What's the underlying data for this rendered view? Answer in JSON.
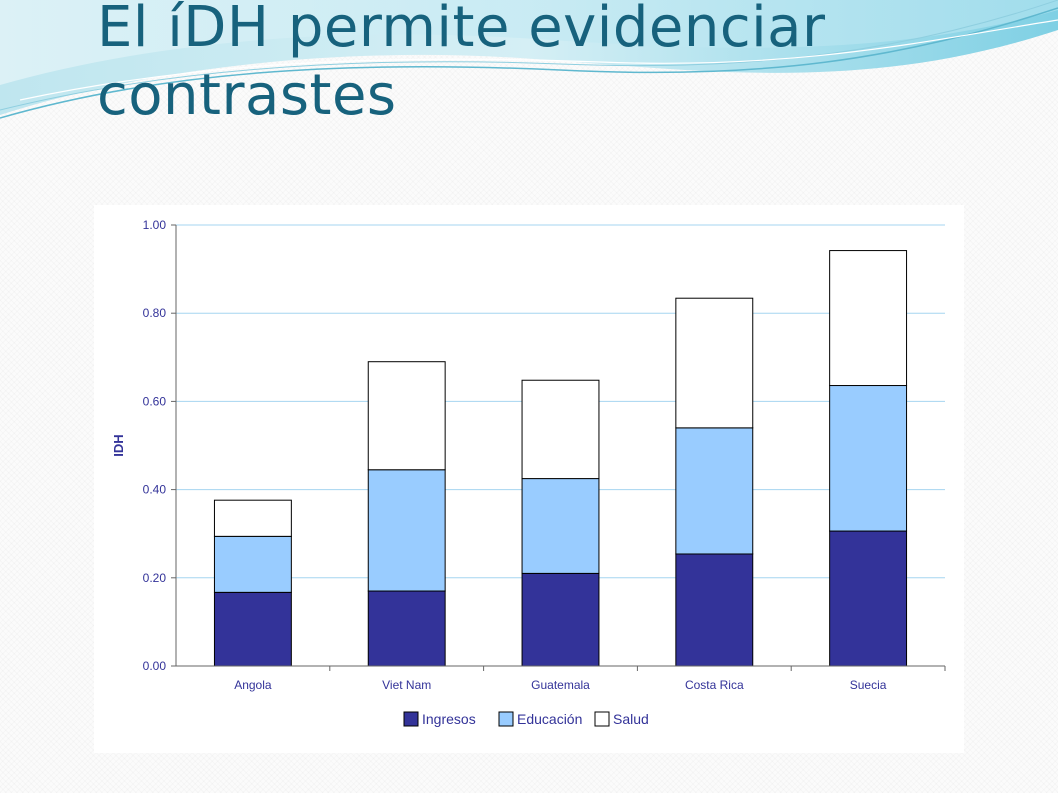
{
  "slide": {
    "title": "El íDH permite evidenciar contrastes"
  },
  "colors": {
    "title": "#17627d",
    "ingresos": "#333399",
    "educacion": "#99ccff",
    "salud": "#ffffff",
    "gridline": "#a6d5f0",
    "axis_text": "#333399"
  },
  "chart_data": {
    "type": "bar",
    "stacked": true,
    "categories": [
      "Angola",
      "Viet Nam",
      "Guatemala",
      "Costa Rica",
      "Suecia"
    ],
    "series": [
      {
        "name": "Ingresos",
        "color": "#333399",
        "values": [
          0.167,
          0.17,
          0.21,
          0.254,
          0.306
        ]
      },
      {
        "name": "Educación",
        "color": "#99ccff",
        "values": [
          0.127,
          0.275,
          0.215,
          0.286,
          0.33
        ]
      },
      {
        "name": "Salud",
        "color": "#ffffff",
        "values": [
          0.082,
          0.245,
          0.223,
          0.294,
          0.306
        ]
      }
    ],
    "ylabel": "IDH",
    "xlabel": "",
    "ylim": [
      0,
      1
    ],
    "yticks": [
      "0.00",
      "0.20",
      "0.40",
      "0.60",
      "0.80",
      "1.00"
    ],
    "grid": true,
    "legend_position": "bottom"
  }
}
